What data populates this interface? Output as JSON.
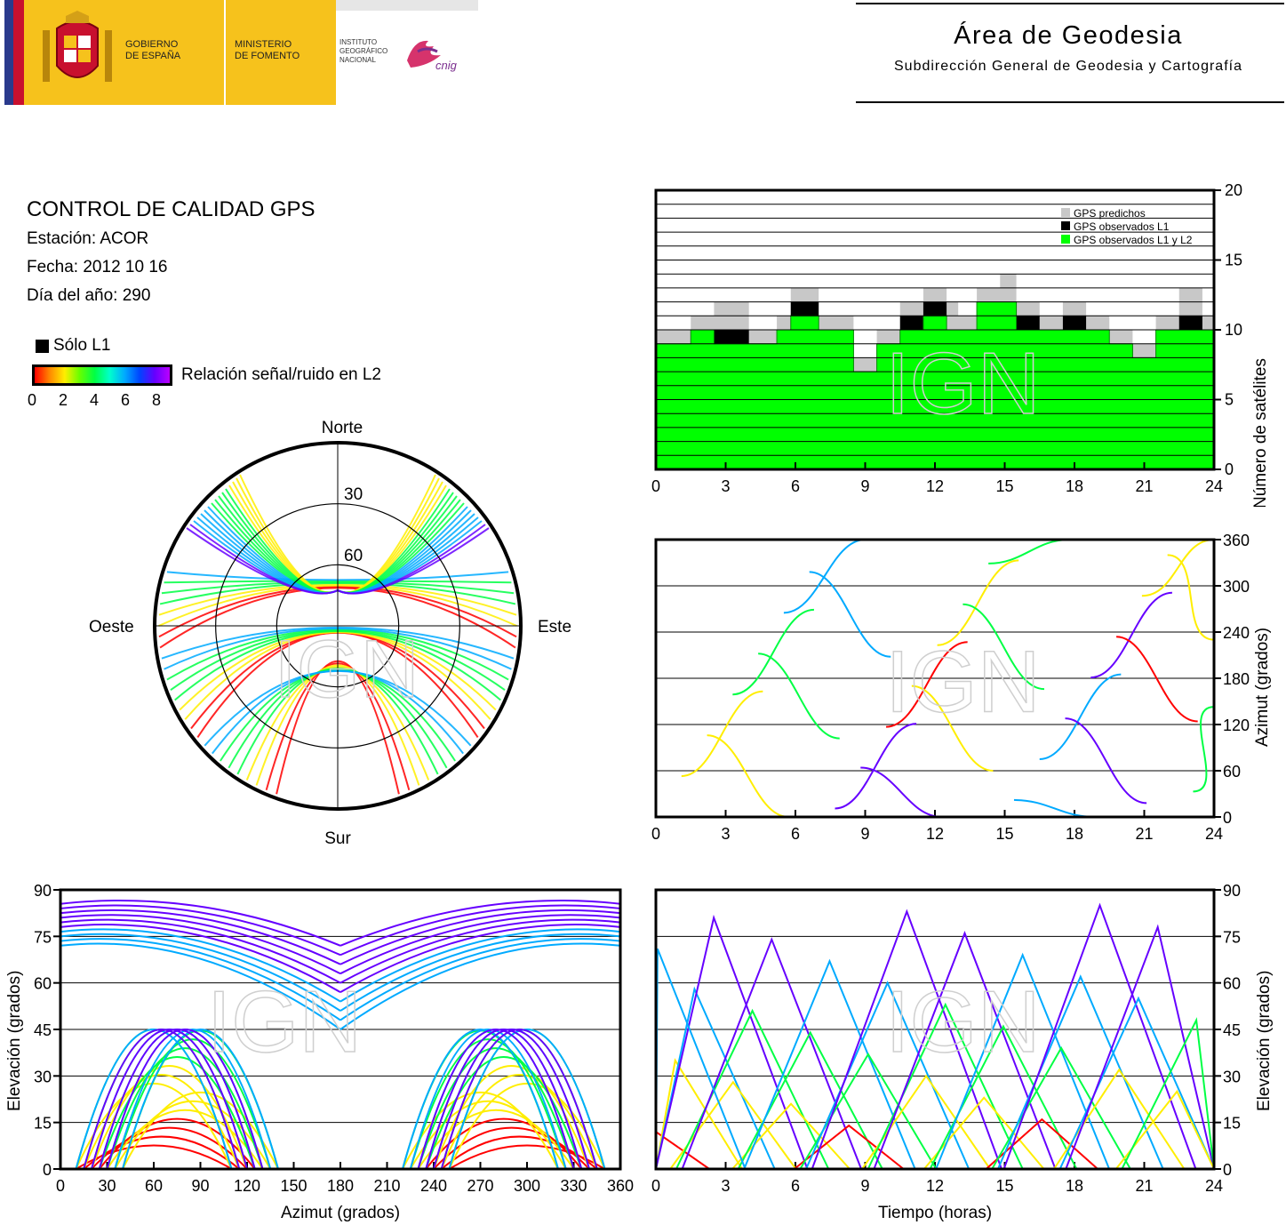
{
  "header": {
    "gov_line1": "GOBIERNO",
    "gov_line2": "DE ESPAÑA",
    "min_line1": "MINISTERIO",
    "min_line2": "DE FOMENTO",
    "ign_line1": "INSTITUTO",
    "ign_line2": "GEOGRÁFICO",
    "ign_line3": "NACIONAL",
    "cnig": "cnig",
    "area_title": "Área de Geodesia",
    "area_subtitle": "Subdirección General de Geodesia y Cartografía"
  },
  "info": {
    "title": "CONTROL DE CALIDAD GPS",
    "station": "Estación: ACOR",
    "date": "Fecha: 2012 10 16",
    "doy": "Día del año: 290"
  },
  "legend": {
    "l1_only": "Sólo L1",
    "colorbar_label": "Relación señal/ruido en L2",
    "colorbar_ticks": [
      "0",
      "2",
      "4",
      "6",
      "8"
    ],
    "colors": [
      "#ff0000",
      "#ffee00",
      "#00ff44",
      "#00aaff",
      "#6600ff",
      "#bb00ff"
    ]
  },
  "watermark": "IGN",
  "chart_data": [
    {
      "id": "satellites",
      "type": "area",
      "xlim": [
        0,
        24
      ],
      "ylim": [
        0,
        20
      ],
      "xticks": [
        "0",
        "3",
        "6",
        "9",
        "12",
        "15",
        "18",
        "21",
        "24"
      ],
      "yticks": [
        "0",
        "5",
        "10",
        "15",
        "20"
      ],
      "ylabel": "Número de satélites",
      "legend": [
        "GPS predichos",
        "GPS observados L1",
        "GPS observados L1 y L2"
      ],
      "series_colors": [
        "#c8c8c8",
        "#000000",
        "#00ff00"
      ],
      "series": [
        {
          "name": "GPS predichos",
          "x": [
            0,
            1.5,
            2.5,
            4,
            5.2,
            5.8,
            7,
            8.5,
            9.5,
            10.5,
            11.5,
            12.5,
            13,
            13.8,
            14.8,
            15.5,
            16.5,
            17.5,
            18.5,
            19.5,
            20.5,
            21.5,
            22.5,
            23.5,
            24
          ],
          "values": [
            10,
            11,
            12,
            10,
            11,
            13,
            11,
            8,
            10,
            12,
            13,
            12,
            11,
            13,
            14,
            12,
            11,
            12,
            11,
            10,
            9,
            11,
            13,
            11,
            10
          ]
        },
        {
          "name": "GPS observados L1",
          "x": [
            0,
            1.5,
            2.5,
            4,
            5.2,
            5.8,
            7,
            8.5,
            9.5,
            10.5,
            11.5,
            12.5,
            13,
            13.8,
            14.8,
            15.5,
            16.5,
            17.5,
            18.5,
            19.5,
            20.5,
            21.5,
            22.5,
            23.5,
            24
          ],
          "values": [
            9,
            10,
            10,
            9,
            10,
            12,
            10,
            7,
            9,
            11,
            12,
            10,
            10,
            12,
            12,
            11,
            10,
            11,
            10,
            9,
            8,
            10,
            11,
            10,
            9
          ]
        },
        {
          "name": "GPS observados L1 y L2",
          "x": [
            0,
            1.5,
            2.5,
            4,
            5.2,
            5.8,
            7,
            8.5,
            9.5,
            10.5,
            11.5,
            12.5,
            13,
            13.8,
            14.8,
            15.5,
            16.5,
            17.5,
            18.5,
            19.5,
            20.5,
            21.5,
            22.5,
            23.5,
            24
          ],
          "values": [
            9,
            10,
            9,
            9,
            10,
            11,
            10,
            7,
            9,
            10,
            11,
            10,
            10,
            12,
            12,
            10,
            10,
            10,
            10,
            9,
            8,
            10,
            10,
            10,
            9
          ]
        }
      ]
    },
    {
      "id": "skyplot",
      "type": "scatter",
      "directions": [
        "Norte",
        "Sur",
        "Este",
        "Oeste"
      ],
      "ring_labels": [
        "30",
        "60"
      ],
      "rings_elevation": [
        0,
        30,
        60
      ]
    },
    {
      "id": "azimut_tiempo",
      "type": "scatter",
      "xlim": [
        0,
        24
      ],
      "ylim": [
        0,
        360
      ],
      "xticks": [
        "0",
        "3",
        "6",
        "9",
        "12",
        "15",
        "18",
        "21",
        "24"
      ],
      "yticks": [
        "0",
        "60",
        "120",
        "180",
        "240",
        "300",
        "360"
      ],
      "ylabel": "Azimut (grados)"
    },
    {
      "id": "elevacion_azimut",
      "type": "scatter",
      "xlim": [
        0,
        360
      ],
      "ylim": [
        0,
        90
      ],
      "xticks": [
        "0",
        "30",
        "60",
        "90",
        "120",
        "150",
        "180",
        "210",
        "240",
        "270",
        "300",
        "330",
        "360"
      ],
      "yticks": [
        "0",
        "15",
        "30",
        "45",
        "60",
        "75",
        "90"
      ],
      "xlabel": "Azimut (grados)",
      "ylabel": "Elevación (grados)"
    },
    {
      "id": "elevacion_tiempo",
      "type": "scatter",
      "xlim": [
        0,
        24
      ],
      "ylim": [
        0,
        90
      ],
      "xticks": [
        "0",
        "3",
        "6",
        "9",
        "12",
        "15",
        "18",
        "21",
        "24"
      ],
      "yticks": [
        "0",
        "15",
        "30",
        "45",
        "60",
        "75",
        "90"
      ],
      "xlabel": "Tiempo (horas)",
      "ylabel": "Elevación (grados)"
    }
  ]
}
